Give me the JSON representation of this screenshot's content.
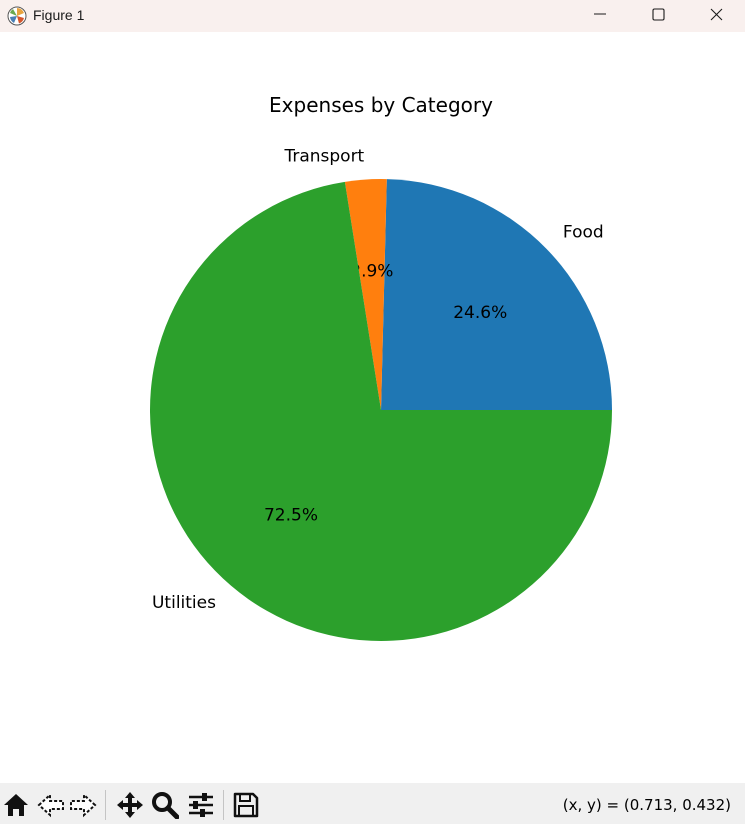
{
  "window": {
    "title": "Figure 1",
    "app_icon": "matplotlib-icon",
    "controls": [
      "minimize-icon",
      "maximize-icon",
      "close-icon"
    ]
  },
  "toolbar": {
    "tools": [
      "home-icon",
      "back-arrow-icon",
      "forward-arrow-icon",
      "pan-icon",
      "zoom-icon",
      "configure-subplots-icon",
      "save-icon"
    ],
    "coords": "(x, y) = (0.713, 0.432)"
  },
  "chart_data": {
    "type": "pie",
    "title": "Expenses by Category",
    "labels": [
      "Food",
      "Transport",
      "Utilities"
    ],
    "values": [
      24.6,
      2.9,
      72.5
    ],
    "pct_labels": [
      "24.6%",
      "2.9%",
      "72.5%"
    ],
    "colors": [
      "#1f77b4",
      "#ff7f0e",
      "#2ca02c"
    ],
    "start_angle": 0,
    "direction": "counterclockwise"
  }
}
